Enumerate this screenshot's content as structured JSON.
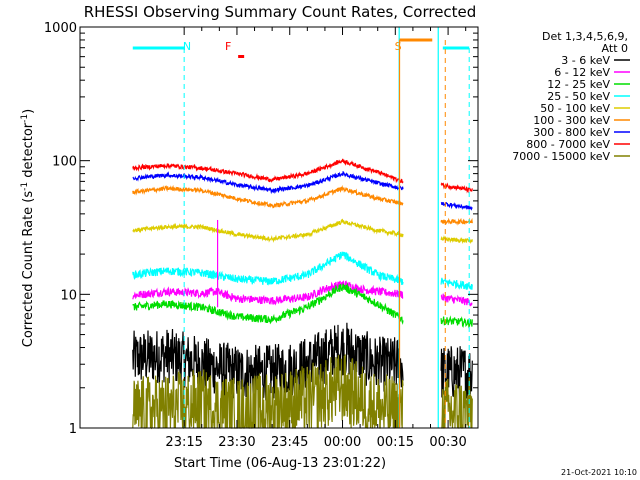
{
  "chart_data": {
    "type": "line",
    "title": "RHESSI Observing Summary Count Rates, Corrected",
    "xlabel": "Start Time (06-Aug-13 23:01:22)",
    "ylabel_main": "Corrected Count Rate (s",
    "ylabel_sup1": "-1",
    "ylabel_mid": " detector",
    "ylabel_sup2": "-1",
    "ylabel_end": ")",
    "footer_date": "21-Oct-2021 10:10",
    "yscale": "log",
    "ylim": [
      1,
      1000
    ],
    "xlim_minutes": [
      -14.6,
      38.5
    ],
    "x_ticks": [
      {
        "t": 15,
        "label": "23:15"
      },
      {
        "t": 30,
        "label": "23:30"
      },
      {
        "t": 45,
        "label": "23:45"
      },
      {
        "t": 60,
        "label": "00:00"
      },
      {
        "t": 75,
        "label": "00:15"
      },
      {
        "t": 90,
        "label": "00:30"
      }
    ],
    "y_ticks": [
      {
        "v": 1,
        "label": "1"
      },
      {
        "v": 10,
        "label": "10"
      },
      {
        "v": 100,
        "label": "100"
      },
      {
        "v": 1000,
        "label": "1000"
      }
    ],
    "legend_header": [
      "Det 1,3,4,5,6,9,",
      "Att 0"
    ],
    "legend_position": "right",
    "data_gap_minutes": [
      77.2,
      88.0
    ],
    "series": [
      {
        "name": "3 - 6 keV",
        "color": "#000000",
        "points": [
          [
            0,
            3.3
          ],
          [
            10,
            3.5
          ],
          [
            20,
            3.0
          ],
          [
            30,
            2.6
          ],
          [
            40,
            2.6
          ],
          [
            50,
            3.0
          ],
          [
            60,
            4.0
          ],
          [
            70,
            3.0
          ],
          [
            77,
            3.0
          ],
          [
            88,
            2.6
          ],
          [
            97,
            2.6
          ]
        ]
      },
      {
        "name": "6 - 12 keV",
        "color": "#ff00ff",
        "points": [
          [
            0,
            9.8
          ],
          [
            10,
            10.5
          ],
          [
            20,
            10.2
          ],
          [
            24,
            10.5
          ],
          [
            30,
            9.3
          ],
          [
            40,
            9.0
          ],
          [
            50,
            9.5
          ],
          [
            55,
            11
          ],
          [
            60,
            12
          ],
          [
            65,
            11
          ],
          [
            70,
            10.5
          ],
          [
            77,
            10
          ],
          [
            88,
            9.5
          ],
          [
            97,
            8.7
          ]
        ]
      },
      {
        "name": "12 - 25 keV",
        "color": "#00dd00",
        "points": [
          [
            0,
            8.0
          ],
          [
            10,
            8.5
          ],
          [
            20,
            8.0
          ],
          [
            30,
            6.8
          ],
          [
            40,
            6.5
          ],
          [
            50,
            8.0
          ],
          [
            60,
            11.5
          ],
          [
            70,
            8.5
          ],
          [
            77,
            6.5
          ],
          [
            88,
            6.4
          ],
          [
            97,
            6.1
          ]
        ]
      },
      {
        "name": "25 - 50 keV",
        "color": "#00ffff",
        "points": [
          [
            0,
            14
          ],
          [
            10,
            15
          ],
          [
            20,
            14.5
          ],
          [
            30,
            13
          ],
          [
            40,
            12.5
          ],
          [
            50,
            14
          ],
          [
            60,
            20
          ],
          [
            70,
            14
          ],
          [
            77,
            12.5
          ],
          [
            88,
            12.5
          ],
          [
            97,
            11.5
          ]
        ]
      },
      {
        "name": "50 - 100 keV",
        "color": "#ddcc00",
        "points": [
          [
            0,
            30
          ],
          [
            10,
            32
          ],
          [
            20,
            32
          ],
          [
            30,
            28
          ],
          [
            40,
            26
          ],
          [
            50,
            28
          ],
          [
            60,
            35
          ],
          [
            70,
            30
          ],
          [
            77,
            28
          ],
          [
            88,
            26
          ],
          [
            97,
            25
          ]
        ]
      },
      {
        "name": "100 - 300 keV",
        "color": "#ff8800",
        "points": [
          [
            0,
            58
          ],
          [
            10,
            62
          ],
          [
            20,
            60
          ],
          [
            30,
            52
          ],
          [
            40,
            46
          ],
          [
            50,
            50
          ],
          [
            60,
            62
          ],
          [
            70,
            52
          ],
          [
            77,
            48
          ],
          [
            88,
            35
          ],
          [
            97,
            35
          ]
        ]
      },
      {
        "name": "300 - 800 keV",
        "color": "#0000ff",
        "points": [
          [
            0,
            74
          ],
          [
            10,
            78
          ],
          [
            20,
            75
          ],
          [
            30,
            66
          ],
          [
            40,
            60
          ],
          [
            50,
            65
          ],
          [
            60,
            80
          ],
          [
            70,
            68
          ],
          [
            77,
            62
          ],
          [
            88,
            48
          ],
          [
            97,
            44
          ]
        ]
      },
      {
        "name": "800 - 7000 keV",
        "color": "#ff0000",
        "points": [
          [
            0,
            88
          ],
          [
            10,
            92
          ],
          [
            20,
            88
          ],
          [
            30,
            80
          ],
          [
            40,
            72
          ],
          [
            50,
            80
          ],
          [
            60,
            100
          ],
          [
            70,
            82
          ],
          [
            77,
            70
          ],
          [
            88,
            66
          ],
          [
            97,
            60
          ]
        ]
      },
      {
        "name": "7000 - 15000 keV",
        "color": "#808000",
        "points": [
          [
            0,
            1.3
          ],
          [
            20,
            1.5
          ],
          [
            30,
            1.3
          ],
          [
            50,
            1.6
          ],
          [
            60,
            2.0
          ],
          [
            70,
            1.4
          ],
          [
            77,
            1.3
          ],
          [
            88,
            1.3
          ],
          [
            97,
            1.3
          ]
        ]
      }
    ],
    "annotations": [
      {
        "label": "N",
        "t": 15.8,
        "color": "#00ffff"
      },
      {
        "label": "F",
        "t": 27.5,
        "color": "#ff0000"
      },
      {
        "label": "S",
        "t": 75.8,
        "color": "#ff8800"
      }
    ]
  }
}
